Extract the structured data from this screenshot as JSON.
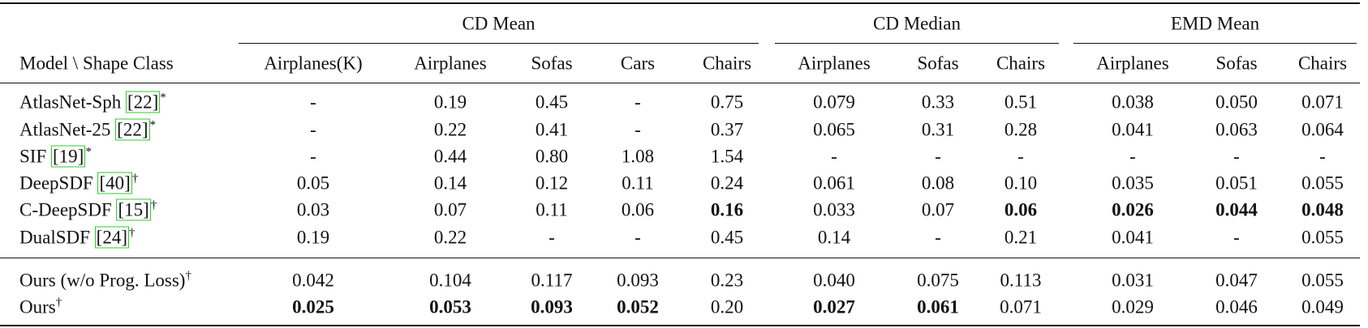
{
  "table": {
    "corner": "Model \\ Shape Class",
    "groups": [
      {
        "title": "CD Mean",
        "columns": [
          "Airplanes(K)",
          "Airplanes",
          "Sofas",
          "Cars",
          "Chairs"
        ]
      },
      {
        "title": "CD Median",
        "columns": [
          "Airplanes",
          "Sofas",
          "Chairs"
        ]
      },
      {
        "title": "EMD Mean",
        "columns": [
          "Airplanes",
          "Sofas",
          "Chairs"
        ]
      }
    ],
    "row_groups": [
      [
        {
          "name": "AtlasNet-Sph",
          "cite": "[22]",
          "mark": "*",
          "cells": [
            "-",
            "0.19",
            "0.45",
            "-",
            "0.75",
            "0.079",
            "0.33",
            "0.51",
            "0.038",
            "0.050",
            "0.071"
          ],
          "bold": []
        },
        {
          "name": "AtlasNet-25",
          "cite": "[22]",
          "mark": "*",
          "cells": [
            "-",
            "0.22",
            "0.41",
            "-",
            "0.37",
            "0.065",
            "0.31",
            "0.28",
            "0.041",
            "0.063",
            "0.064"
          ],
          "bold": []
        },
        {
          "name": "SIF",
          "cite": "[19]",
          "mark": "*",
          "cells": [
            "-",
            "0.44",
            "0.80",
            "1.08",
            "1.54",
            "-",
            "-",
            "-",
            "-",
            "-",
            "-"
          ],
          "bold": []
        },
        {
          "name": "DeepSDF",
          "cite": "[40]",
          "mark": "†",
          "cells": [
            "0.05",
            "0.14",
            "0.12",
            "0.11",
            "0.24",
            "0.061",
            "0.08",
            "0.10",
            "0.035",
            "0.051",
            "0.055"
          ],
          "bold": []
        },
        {
          "name": "C-DeepSDF",
          "cite": "[15]",
          "mark": "†",
          "cells": [
            "0.03",
            "0.07",
            "0.11",
            "0.06",
            "0.16",
            "0.033",
            "0.07",
            "0.06",
            "0.026",
            "0.044",
            "0.048"
          ],
          "bold": [
            4,
            7,
            8,
            9,
            10
          ]
        },
        {
          "name": "DualSDF",
          "cite": "[24]",
          "mark": "†",
          "cells": [
            "0.19",
            "0.22",
            "-",
            "-",
            "0.45",
            "0.14",
            "-",
            "0.21",
            "0.041",
            "-",
            "0.055"
          ],
          "bold": []
        }
      ],
      [
        {
          "name": "Ours (w/o Prog. Loss)",
          "mark": "†",
          "cells": [
            "0.042",
            "0.104",
            "0.117",
            "0.093",
            "0.23",
            "0.040",
            "0.075",
            "0.113",
            "0.031",
            "0.047",
            "0.055"
          ],
          "bold": []
        },
        {
          "name": "Ours",
          "mark": "†",
          "cells": [
            "0.025",
            "0.053",
            "0.093",
            "0.052",
            "0.20",
            "0.027",
            "0.061",
            "0.071",
            "0.029",
            "0.046",
            "0.049"
          ],
          "bold": [
            0,
            1,
            2,
            3,
            5,
            6
          ]
        }
      ]
    ]
  }
}
